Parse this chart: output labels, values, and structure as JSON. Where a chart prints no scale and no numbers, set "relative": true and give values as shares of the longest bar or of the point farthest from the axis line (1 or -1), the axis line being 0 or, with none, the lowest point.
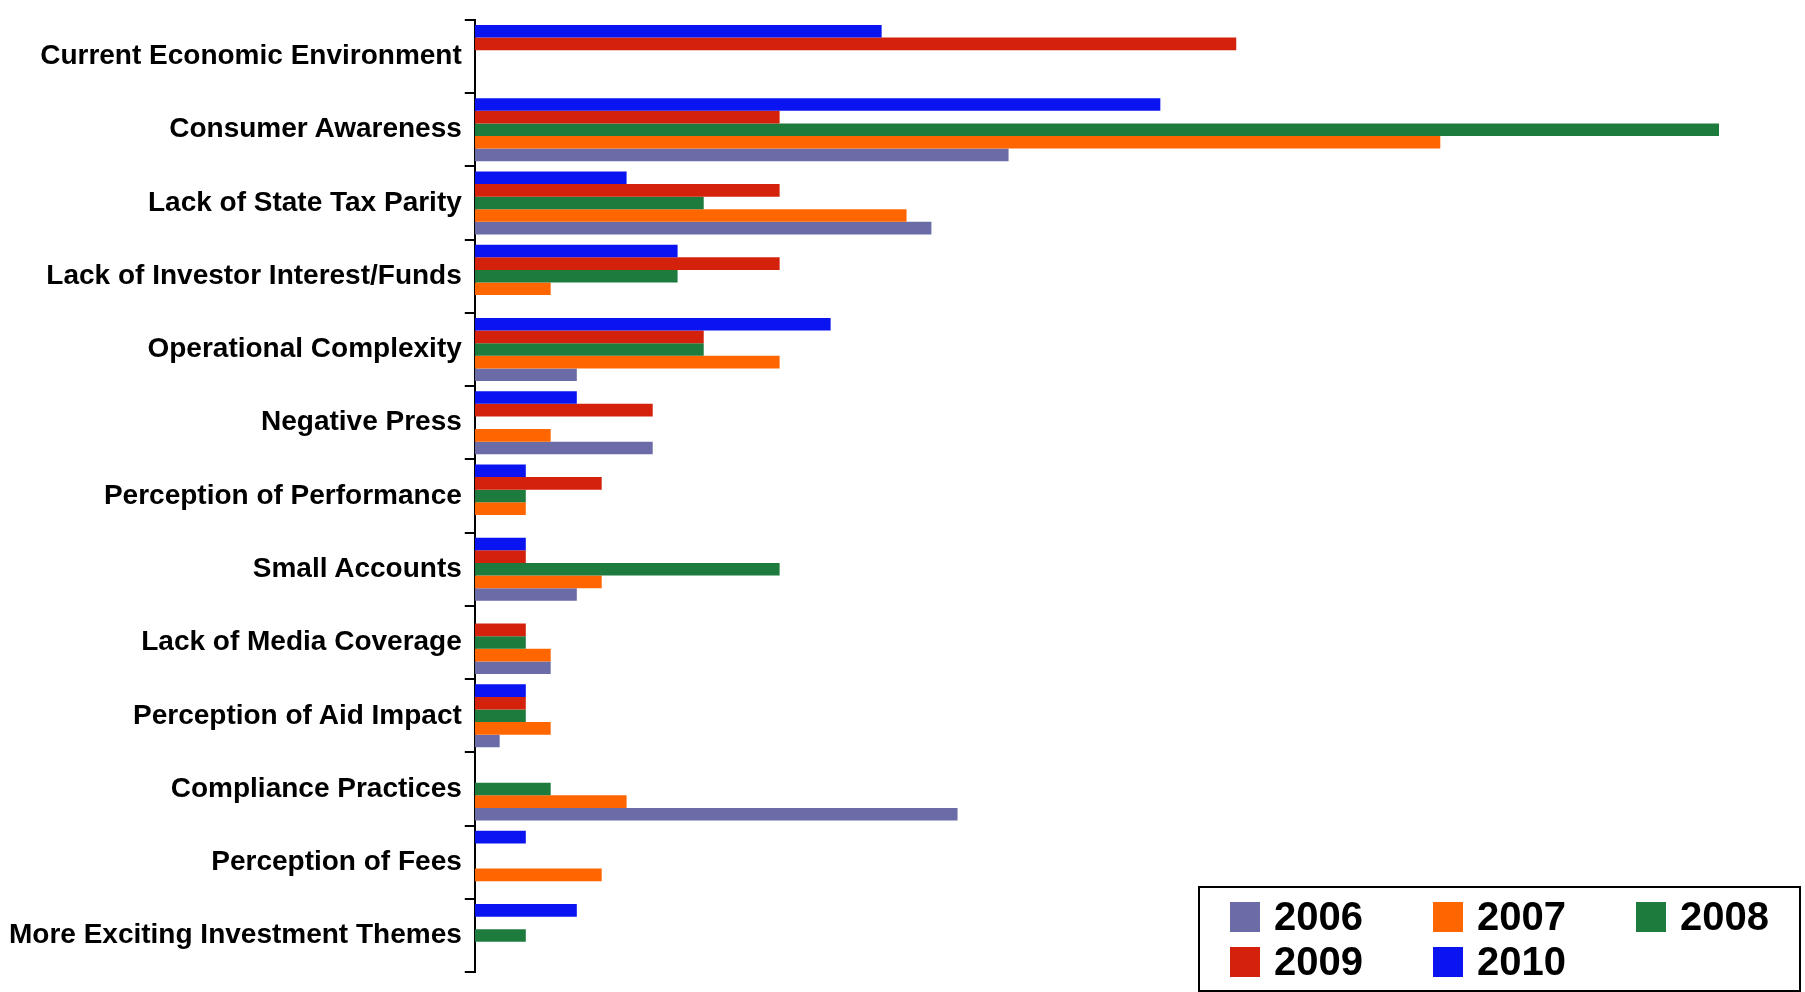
{
  "chart_data": {
    "type": "bar",
    "orientation": "horizontal",
    "relative": true,
    "legend": "bottom right",
    "categories": [
      "Current Economic Environment",
      "Consumer Awareness",
      "Lack of State Tax Parity",
      "Lack of Investor Interest/Funds",
      "Operational Complexity",
      "Negative Press",
      "Perception of Performance",
      "Small Accounts",
      "Lack of Media Coverage",
      "Perception of Aid Impact",
      "Compliance Practices",
      "Perception of Fees",
      "More Exciting Investment Themes"
    ],
    "series": [
      {
        "name": "2006",
        "color": "#6b6ba8",
        "values": [
          null,
          0.429,
          0.367,
          null,
          0.082,
          0.143,
          null,
          0.082,
          0.061,
          0.02,
          0.388,
          null,
          null
        ]
      },
      {
        "name": "2007",
        "color": "#ff6600",
        "values": [
          null,
          0.776,
          0.347,
          0.061,
          0.245,
          0.061,
          0.041,
          0.102,
          0.061,
          0.061,
          0.122,
          0.102,
          null
        ]
      },
      {
        "name": "2008",
        "color": "#1e7b3e",
        "values": [
          null,
          1,
          0.184,
          0.163,
          0.184,
          null,
          0.041,
          0.245,
          0.041,
          0.041,
          0.061,
          null,
          0.041
        ]
      },
      {
        "name": "2009",
        "color": "#d4210b",
        "values": [
          0.612,
          0.245,
          0.245,
          0.245,
          0.184,
          0.143,
          0.102,
          0.041,
          0.041,
          0.041,
          null,
          null,
          null
        ]
      },
      {
        "name": "2010",
        "color": "#0a14f0",
        "values": [
          0.327,
          0.551,
          0.122,
          0.163,
          0.286,
          0.082,
          0.041,
          0.041,
          null,
          0.041,
          null,
          0.041,
          0.082
        ]
      }
    ]
  }
}
